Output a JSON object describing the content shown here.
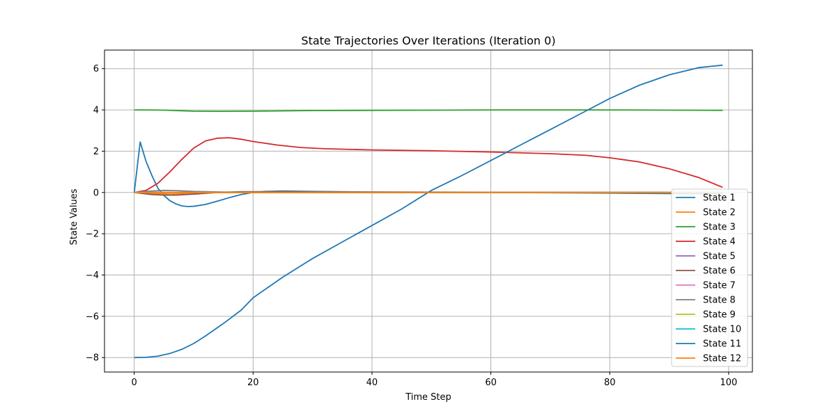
{
  "chart_data": {
    "type": "line",
    "title": "State Trajectories Over Iterations (Iteration 0)",
    "xlabel": "Time Step",
    "ylabel": "State Values",
    "xlim": [
      -5,
      104
    ],
    "ylim": [
      -8.7,
      6.9
    ],
    "xticks": [
      0,
      20,
      40,
      60,
      80,
      100
    ],
    "yticks": [
      -8,
      -6,
      -4,
      -2,
      0,
      2,
      4,
      6
    ],
    "xtick_labels": [
      "0",
      "20",
      "40",
      "60",
      "80",
      "100"
    ],
    "ytick_labels": [
      "−8",
      "−6",
      "−4",
      "−2",
      "0",
      "2",
      "4",
      "6"
    ],
    "grid": true,
    "legend_position": "lower-right",
    "series": [
      {
        "name": "State 1",
        "color": "#1f77b4",
        "points": [
          [
            0,
            0
          ],
          [
            1,
            2.45
          ],
          [
            2,
            1.5
          ],
          [
            3,
            0.8
          ],
          [
            4,
            0.2
          ],
          [
            5,
            -0.15
          ],
          [
            6,
            -0.4
          ],
          [
            7,
            -0.55
          ],
          [
            8,
            -0.65
          ],
          [
            9,
            -0.68
          ],
          [
            10,
            -0.67
          ],
          [
            12,
            -0.58
          ],
          [
            14,
            -0.42
          ],
          [
            16,
            -0.25
          ],
          [
            18,
            -0.1
          ],
          [
            20,
            0
          ],
          [
            22,
            0.05
          ],
          [
            25,
            0.07
          ],
          [
            30,
            0.05
          ],
          [
            40,
            0.02
          ],
          [
            60,
            0
          ],
          [
            80,
            -0.03
          ],
          [
            90,
            -0.05
          ],
          [
            99,
            -0.07
          ]
        ]
      },
      {
        "name": "State 2",
        "color": "#ff7f0e",
        "points": [
          [
            0,
            0
          ],
          [
            3,
            -0.05
          ],
          [
            6,
            -0.08
          ],
          [
            8,
            -0.07
          ],
          [
            10,
            -0.05
          ],
          [
            14,
            0
          ],
          [
            20,
            0.03
          ],
          [
            30,
            0.02
          ],
          [
            50,
            0.01
          ],
          [
            99,
            0
          ]
        ]
      },
      {
        "name": "State 3",
        "color": "#2ca02c",
        "points": [
          [
            0,
            4.0
          ],
          [
            2,
            4.0
          ],
          [
            5,
            3.99
          ],
          [
            10,
            3.94
          ],
          [
            14,
            3.93
          ],
          [
            20,
            3.94
          ],
          [
            30,
            3.97
          ],
          [
            40,
            3.98
          ],
          [
            60,
            4.0
          ],
          [
            80,
            4.0
          ],
          [
            90,
            3.99
          ],
          [
            99,
            3.98
          ]
        ]
      },
      {
        "name": "State 4",
        "color": "#d62728",
        "points": [
          [
            0,
            0
          ],
          [
            2,
            0.1
          ],
          [
            4,
            0.45
          ],
          [
            6,
            1.0
          ],
          [
            8,
            1.6
          ],
          [
            10,
            2.15
          ],
          [
            12,
            2.5
          ],
          [
            14,
            2.63
          ],
          [
            16,
            2.65
          ],
          [
            18,
            2.58
          ],
          [
            20,
            2.47
          ],
          [
            24,
            2.3
          ],
          [
            28,
            2.18
          ],
          [
            32,
            2.12
          ],
          [
            40,
            2.06
          ],
          [
            50,
            2.02
          ],
          [
            60,
            1.96
          ],
          [
            70,
            1.88
          ],
          [
            76,
            1.8
          ],
          [
            80,
            1.68
          ],
          [
            85,
            1.48
          ],
          [
            90,
            1.15
          ],
          [
            95,
            0.72
          ],
          [
            99,
            0.25
          ]
        ]
      },
      {
        "name": "State 5",
        "color": "#9467bd",
        "points": [
          [
            0,
            0
          ],
          [
            99,
            0
          ]
        ]
      },
      {
        "name": "State 6",
        "color": "#8c564b",
        "points": [
          [
            0,
            0
          ],
          [
            3,
            -0.1
          ],
          [
            5,
            -0.13
          ],
          [
            7,
            -0.13
          ],
          [
            10,
            -0.08
          ],
          [
            14,
            0
          ],
          [
            18,
            0.04
          ],
          [
            25,
            0.04
          ],
          [
            40,
            0.02
          ],
          [
            99,
            0
          ]
        ]
      },
      {
        "name": "State 7",
        "color": "#e377c2",
        "points": [
          [
            0,
            0
          ],
          [
            99,
            0
          ]
        ]
      },
      {
        "name": "State 8",
        "color": "#7f7f7f",
        "points": [
          [
            0,
            0
          ],
          [
            3,
            0.07
          ],
          [
            5,
            0.1
          ],
          [
            7,
            0.09
          ],
          [
            10,
            0.05
          ],
          [
            15,
            0.02
          ],
          [
            20,
            0
          ],
          [
            99,
            0
          ]
        ]
      },
      {
        "name": "State 9",
        "color": "#bcbd22",
        "points": [
          [
            0,
            0
          ],
          [
            99,
            0
          ]
        ]
      },
      {
        "name": "State 10",
        "color": "#17becf",
        "points": [
          [
            0,
            0
          ],
          [
            99,
            0
          ]
        ]
      },
      {
        "name": "State 11",
        "color": "#1f77b4",
        "points": [
          [
            0,
            -8.0
          ],
          [
            2,
            -7.99
          ],
          [
            4,
            -7.93
          ],
          [
            6,
            -7.8
          ],
          [
            8,
            -7.6
          ],
          [
            10,
            -7.32
          ],
          [
            12,
            -6.95
          ],
          [
            15,
            -6.35
          ],
          [
            18,
            -5.7
          ],
          [
            20,
            -5.1
          ],
          [
            25,
            -4.1
          ],
          [
            30,
            -3.2
          ],
          [
            35,
            -2.4
          ],
          [
            40,
            -1.6
          ],
          [
            45,
            -0.8
          ],
          [
            50,
            0.1
          ],
          [
            55,
            0.8
          ],
          [
            60,
            1.55
          ],
          [
            65,
            2.3
          ],
          [
            70,
            3.05
          ],
          [
            75,
            3.8
          ],
          [
            80,
            4.55
          ],
          [
            85,
            5.2
          ],
          [
            90,
            5.7
          ],
          [
            95,
            6.05
          ],
          [
            99,
            6.17
          ]
        ]
      },
      {
        "name": "State 12",
        "color": "#ff7f0e",
        "points": [
          [
            0,
            0
          ],
          [
            99,
            0
          ]
        ]
      }
    ]
  }
}
